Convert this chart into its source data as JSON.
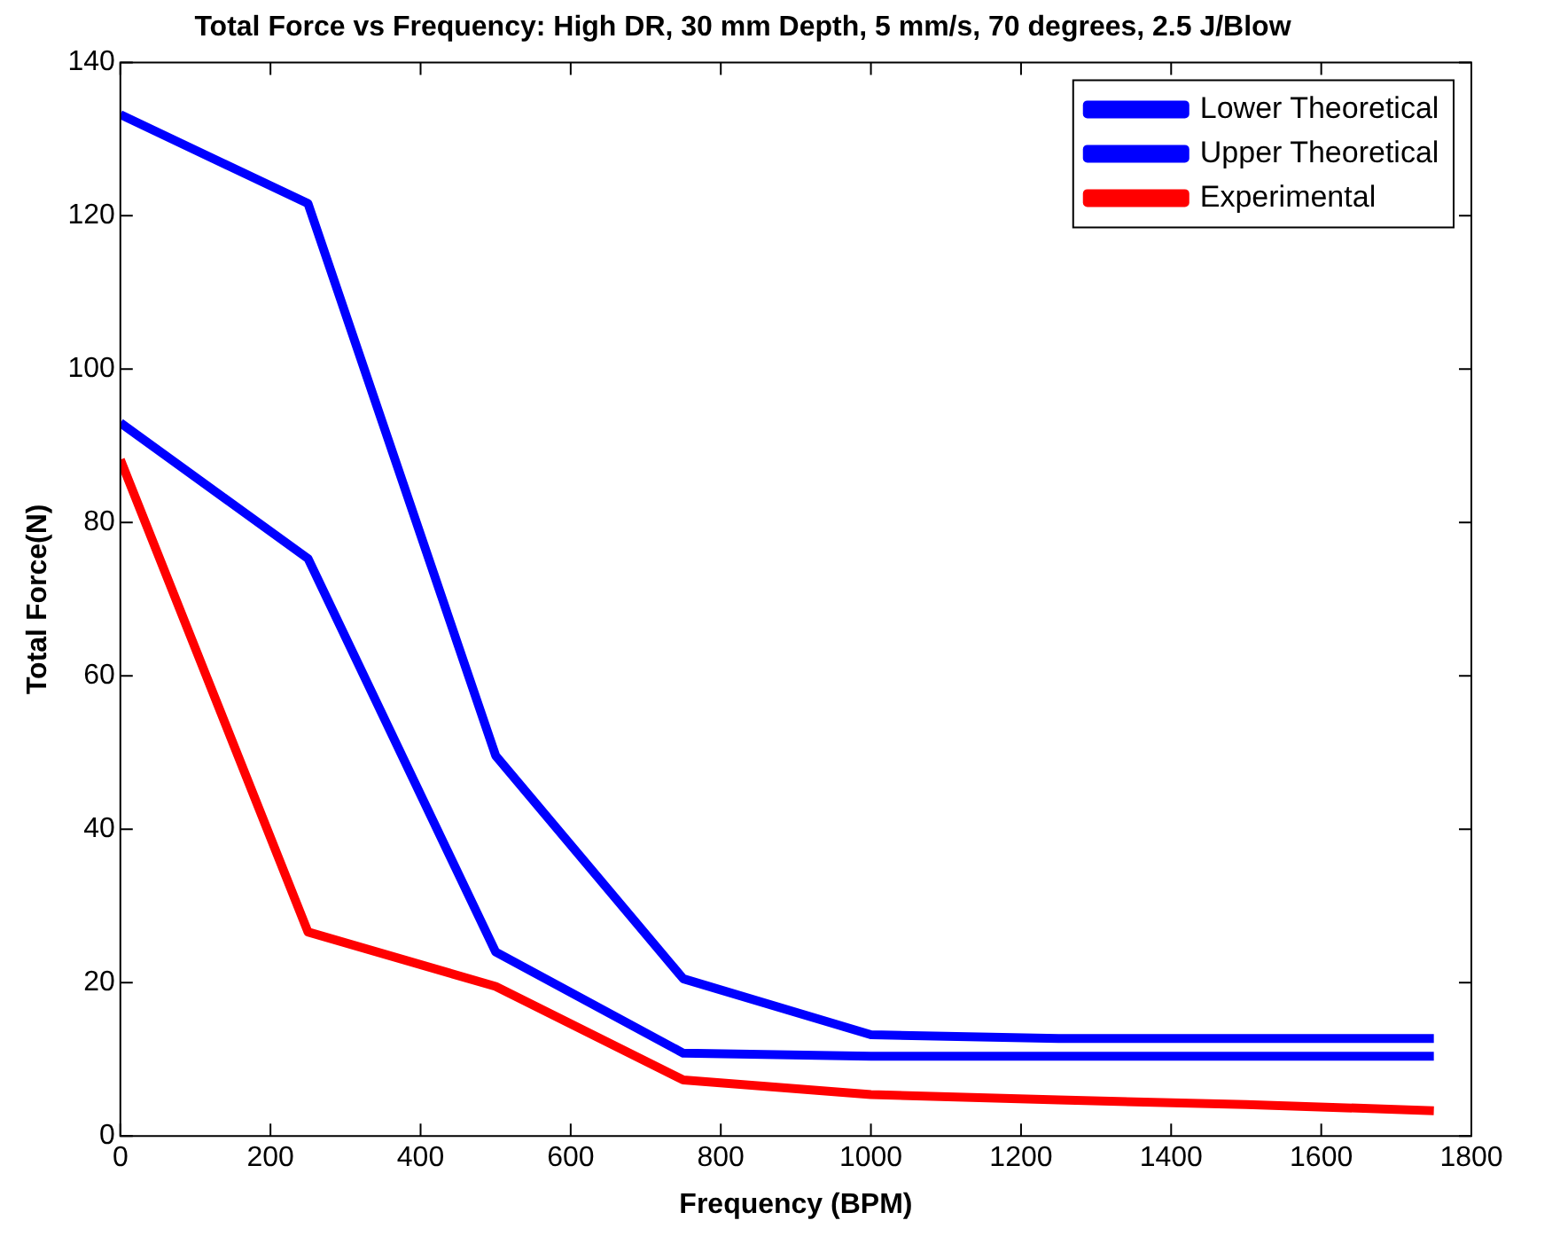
{
  "chart_data": {
    "type": "line",
    "title": "Total Force vs Frequency: High DR, 30 mm Depth, 5 mm/s, 70 degrees, 2.5 J/Blow",
    "xlabel": "Frequency (BPM)",
    "ylabel": "Total Force(N)",
    "x": [
      0,
      250,
      500,
      750,
      1000,
      1250,
      1500,
      1750
    ],
    "series": [
      {
        "name": "Lower Theoretical",
        "color": "#0000ff",
        "values": [
          93,
          75.3,
          24,
          10.8,
          10.4,
          10.4,
          10.4,
          10.4
        ]
      },
      {
        "name": "Upper Theoretical",
        "color": "#0000ff",
        "values": [
          133.2,
          121.6,
          49.6,
          20.5,
          13.2,
          12.7,
          12.7,
          12.7
        ]
      },
      {
        "name": "Experimental",
        "color": "#ff0000",
        "values": [
          88.2,
          26.6,
          19.5,
          7.3,
          5.4,
          4.7,
          4.1,
          3.3
        ]
      }
    ],
    "xlim": [
      0,
      1800
    ],
    "xticks": [
      0,
      200,
      400,
      600,
      800,
      1000,
      1200,
      1400,
      1600,
      1800
    ],
    "ylim": [
      0,
      140
    ],
    "yticks": [
      0,
      20,
      40,
      60,
      80,
      100,
      120,
      140
    ],
    "grid": false,
    "legend": "top right",
    "marker": "none",
    "line_style": "solid"
  }
}
